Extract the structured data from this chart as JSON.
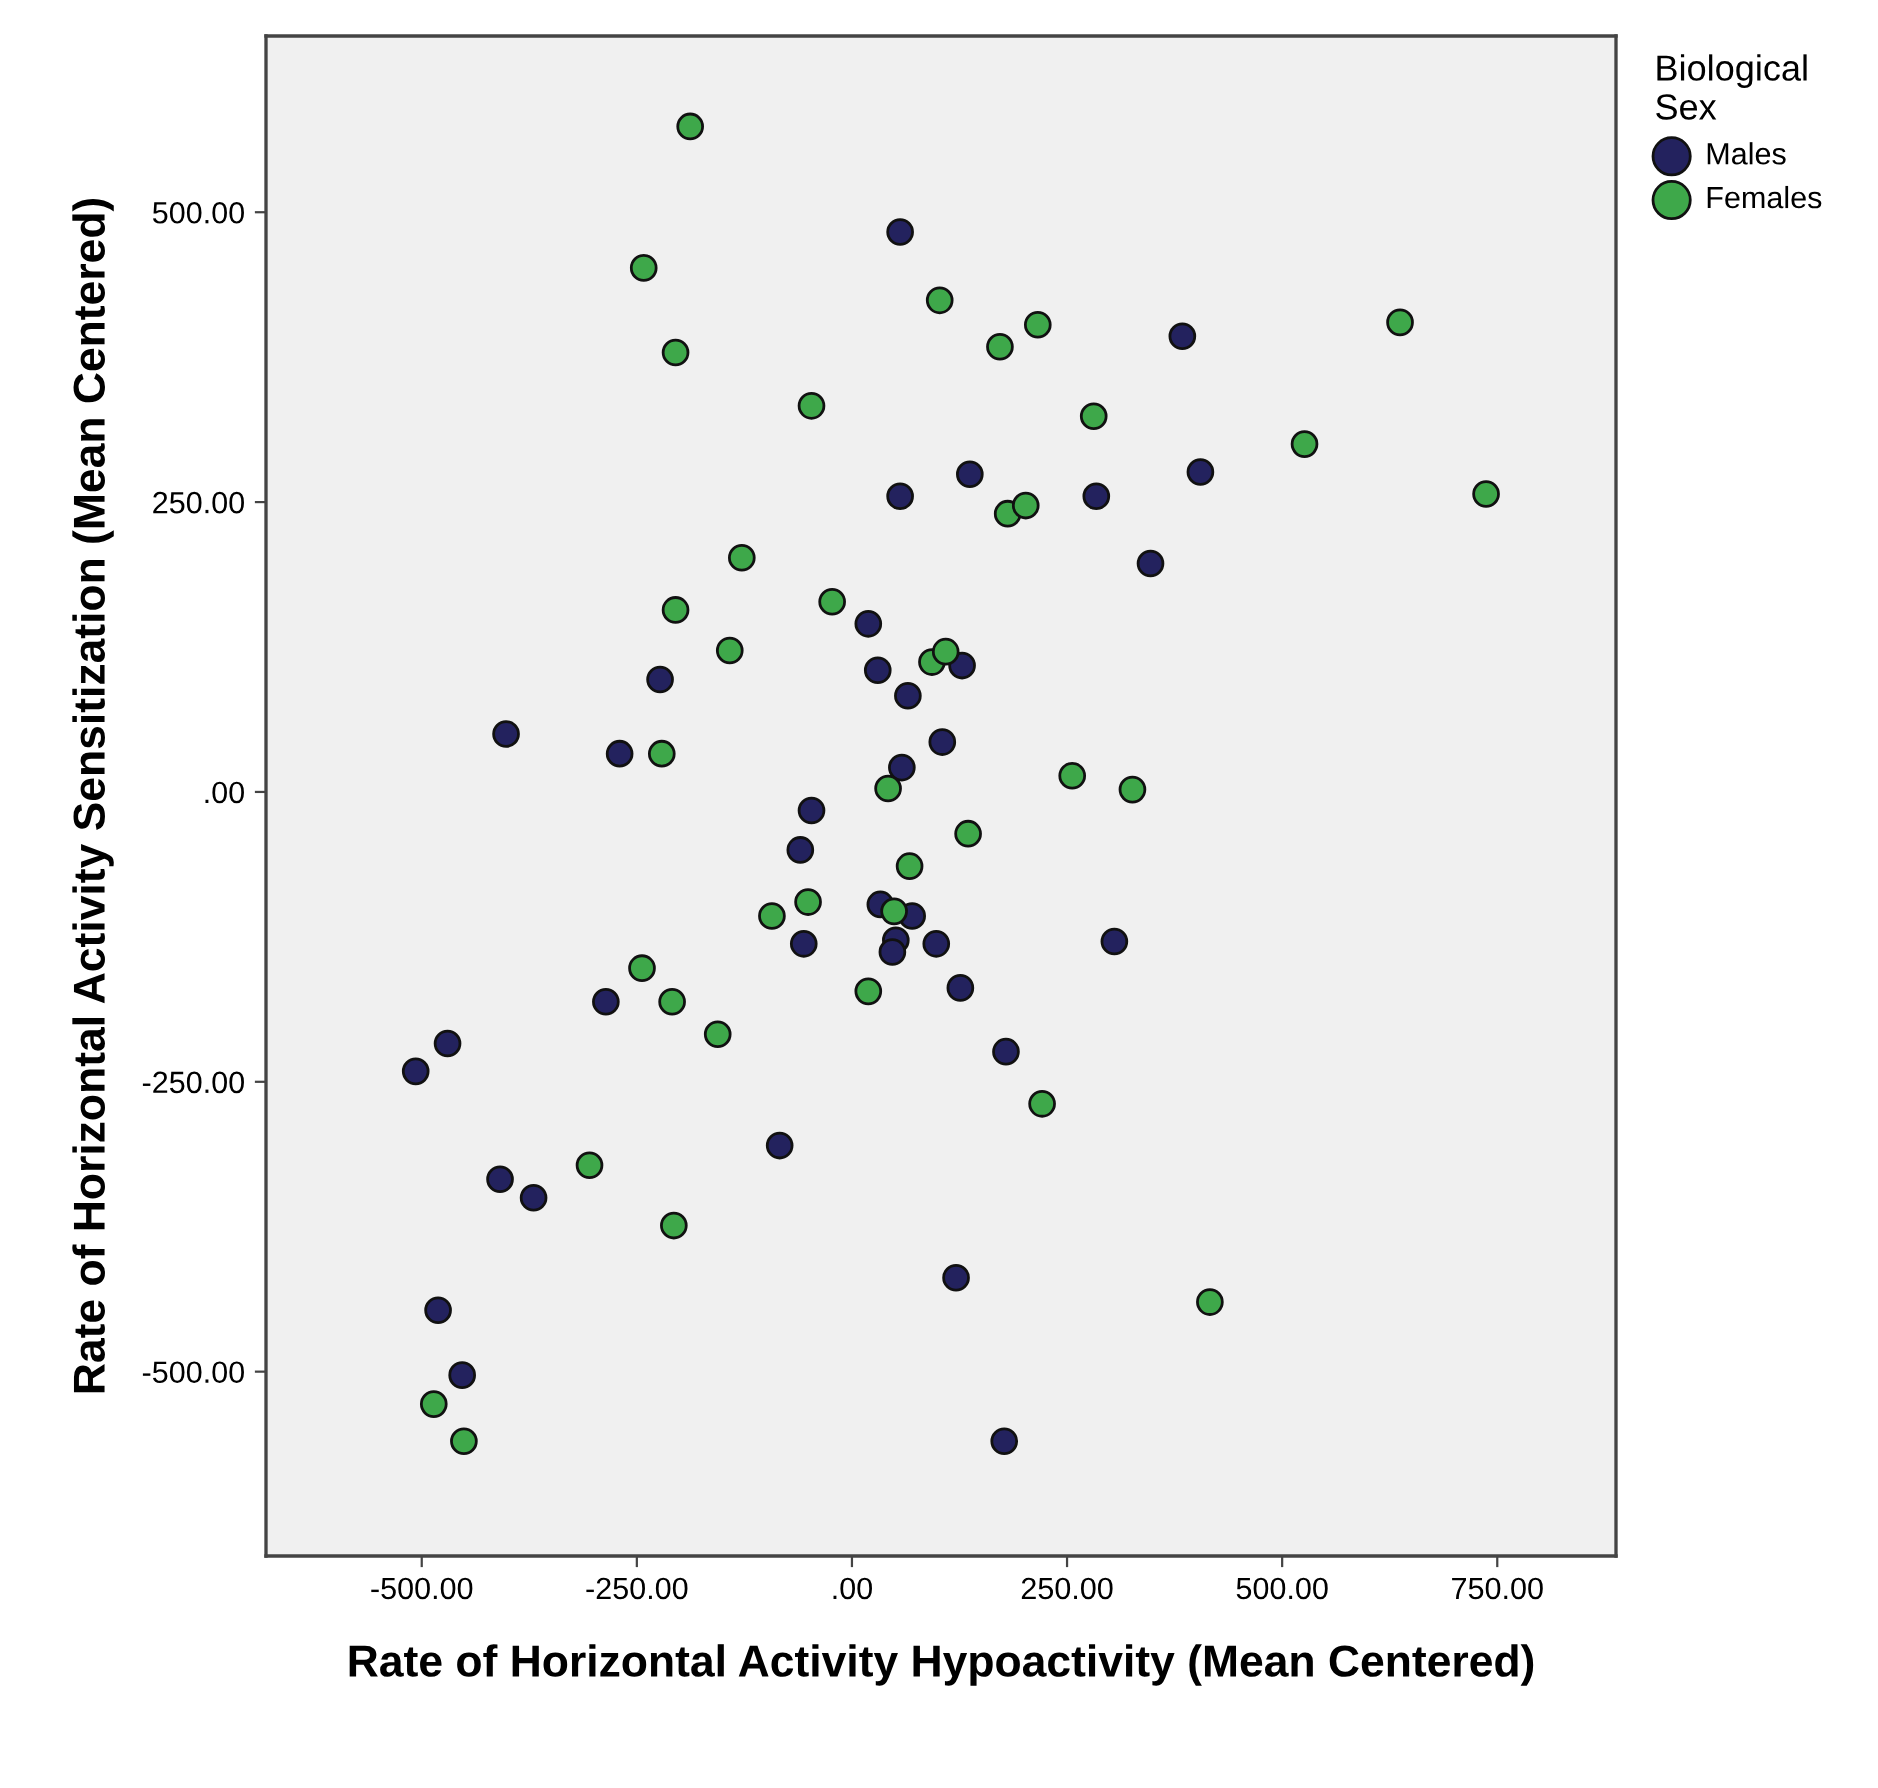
{
  "chart_data": {
    "type": "scatter",
    "xlabel": "Rate of Horizontal Activity Hypoactivity (Mean Centered)",
    "ylabel": "Rate of Horizontal Activity Sensitization (Mean Centered)",
    "legend_title": "Biological Sex",
    "legend": "right",
    "marker": "circle",
    "grid": false,
    "xlim": [
      -681,
      888
    ],
    "ylim": [
      -659,
      652
    ],
    "xticks": [
      {
        "value": -500,
        "label": "-500.00"
      },
      {
        "value": -250,
        "label": "-250.00"
      },
      {
        "value": 0,
        "label": ".00"
      },
      {
        "value": 250,
        "label": "250.00"
      },
      {
        "value": 500,
        "label": "500.00"
      },
      {
        "value": 750,
        "label": "750.00"
      }
    ],
    "yticks": [
      {
        "value": -500,
        "label": "-500.00"
      },
      {
        "value": -250,
        "label": "-250.00"
      },
      {
        "value": 0,
        "label": ".00"
      },
      {
        "value": 250,
        "label": "250.00"
      },
      {
        "value": 500,
        "label": "500.00"
      }
    ],
    "series": [
      {
        "name": "Males",
        "color": "#23225e",
        "x": [
          56,
          384,
          137,
          56,
          284,
          405,
          347,
          19,
          30,
          128,
          65,
          -223,
          -402,
          -270,
          105,
          58,
          -47,
          -60,
          -56,
          33,
          70,
          51,
          47,
          98,
          -286,
          -470,
          -507,
          -84,
          -409,
          -370,
          -481,
          -453,
          121,
          126,
          305,
          179,
          177
        ],
        "values": [
          483,
          393,
          274,
          255,
          255,
          276,
          197,
          145,
          105,
          109,
          83,
          97,
          50,
          33,
          43,
          21,
          -16,
          -50,
          -131,
          -97,
          -107,
          -128,
          -138,
          -131,
          -181,
          -217,
          -241,
          -305,
          -334,
          -350,
          -447,
          -503,
          -419,
          -169,
          -129,
          -224,
          -560
        ]
      },
      {
        "name": "Females",
        "color": "#3ea84a",
        "x": [
          -188,
          -242,
          -205,
          -47,
          102,
          -128,
          -23,
          -205,
          -142,
          93,
          -221,
          42,
          216,
          172,
          281,
          637,
          526,
          737,
          181,
          202,
          109,
          256,
          326,
          67,
          -51,
          -93,
          49,
          19,
          -244,
          -209,
          -156,
          -305,
          -207,
          -486,
          -451,
          135,
          221,
          416
        ],
        "values": [
          574,
          452,
          379,
          333,
          424,
          202,
          164,
          157,
          122,
          112,
          33,
          3,
          403,
          384,
          324,
          405,
          300,
          257,
          240,
          247,
          121,
          14,
          2,
          -64,
          -95,
          -107,
          -103,
          -172,
          -152,
          -181,
          -209,
          -322,
          -374,
          -528,
          -560,
          -36,
          -269,
          -440
        ]
      }
    ]
  }
}
